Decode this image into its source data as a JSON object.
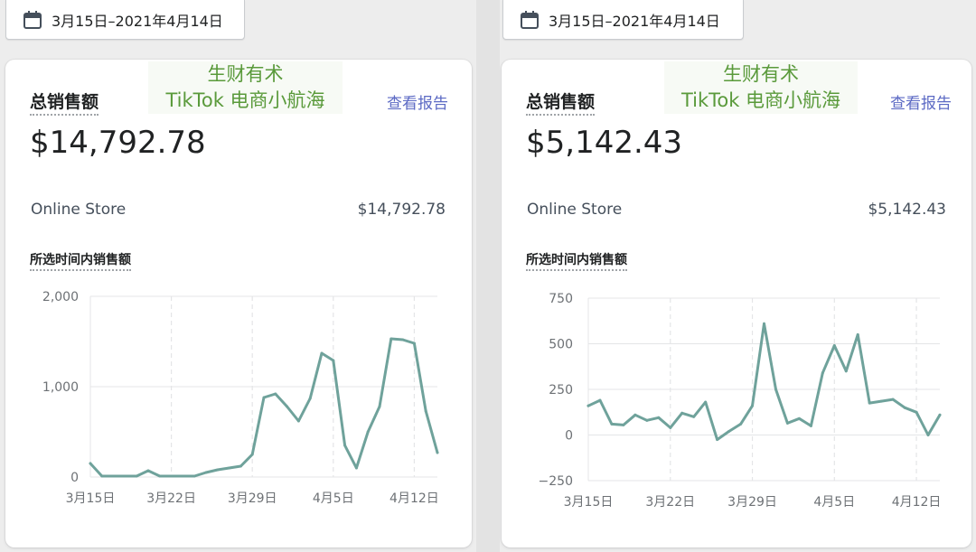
{
  "panels": [
    {
      "date_range": "3月15日–2021年4月14日",
      "card_title": "总销售额",
      "watermark": [
        "生财有术",
        "TikTok 电商小航海"
      ],
      "view_report": "查看报告",
      "total": "$14,792.78",
      "store_name": "Online Store",
      "store_value": "$14,792.78",
      "chart_title": "所选时间内销售额"
    },
    {
      "date_range": "3月15日–2021年4月14日",
      "card_title": "总销售额",
      "watermark": [
        "生财有术",
        "TikTok 电商小航海"
      ],
      "view_report": "查看报告",
      "total": "$5,142.43",
      "store_name": "Online Store",
      "store_value": "$5,142.43",
      "chart_title": "所选时间内销售额"
    }
  ],
  "colors": {
    "line": "#6fa29b",
    "grid": "#e4e5e7",
    "accent": "#5c6ac4",
    "watermark": "#5a9a3b"
  },
  "icons": {
    "date": "calendar-icon"
  },
  "chart_data": [
    {
      "type": "line",
      "x_tick_labels": [
        "3月15日",
        "3月22日",
        "3月29日",
        "4月5日",
        "4月12日"
      ],
      "y_tick_labels": [
        "2,000",
        "1,000",
        "0"
      ],
      "ylim": [
        0,
        2000
      ],
      "x": [
        "3月15日",
        "3月16日",
        "3月17日",
        "3月18日",
        "3月19日",
        "3月20日",
        "3月21日",
        "3月22日",
        "3月23日",
        "3月24日",
        "3月25日",
        "3月26日",
        "3月27日",
        "3月28日",
        "3月29日",
        "3月30日",
        "3月31日",
        "4月1日",
        "4月2日",
        "4月3日",
        "4月4日",
        "4月5日",
        "4月6日",
        "4月7日",
        "4月8日",
        "4月9日",
        "4月10日",
        "4月11日",
        "4月12日",
        "4月13日",
        "4月14日"
      ],
      "values": [
        150,
        10,
        10,
        10,
        10,
        70,
        10,
        10,
        10,
        10,
        50,
        80,
        100,
        120,
        250,
        880,
        920,
        780,
        620,
        870,
        1370,
        1290,
        350,
        100,
        500,
        780,
        1530,
        1520,
        1480,
        730,
        270
      ],
      "grid": true
    },
    {
      "type": "line",
      "x_tick_labels": [
        "3月15日",
        "3月22日",
        "3月29日",
        "4月5日",
        "4月12日"
      ],
      "y_tick_labels": [
        "750",
        "500",
        "250",
        "0",
        "−250"
      ],
      "ylim": [
        -250,
        750
      ],
      "x": [
        "3月15日",
        "3月16日",
        "3月17日",
        "3月18日",
        "3月19日",
        "3月20日",
        "3月21日",
        "3月22日",
        "3月23日",
        "3月24日",
        "3月25日",
        "3月26日",
        "3月27日",
        "3月28日",
        "3月29日",
        "3月30日",
        "3月31日",
        "4月1日",
        "4月2日",
        "4月3日",
        "4月4日",
        "4月5日",
        "4月6日",
        "4月7日",
        "4月8日",
        "4月9日",
        "4月10日",
        "4月11日",
        "4月12日",
        "4月13日",
        "4月14日"
      ],
      "values": [
        160,
        190,
        60,
        55,
        110,
        80,
        95,
        40,
        120,
        100,
        180,
        -25,
        20,
        60,
        160,
        610,
        250,
        65,
        90,
        50,
        340,
        490,
        350,
        550,
        175,
        185,
        195,
        150,
        125,
        0,
        110
      ],
      "grid": true
    }
  ]
}
